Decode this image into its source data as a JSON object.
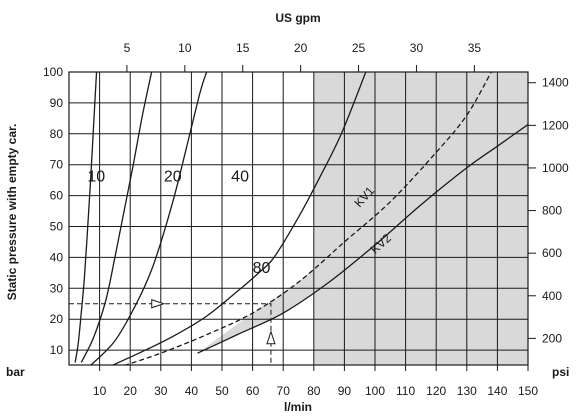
{
  "chart_data": {
    "type": "line",
    "title": "",
    "xlabel": "l/min",
    "ylabel": "Static pressure with empty car.",
    "y_unit": "bar",
    "top_axis_label": "US gpm",
    "right_axis_unit": "psi",
    "x_ticks": [
      10,
      20,
      30,
      40,
      50,
      60,
      70,
      80,
      90,
      100,
      110,
      120,
      130,
      140,
      150
    ],
    "y_ticks": [
      10,
      20,
      30,
      40,
      50,
      60,
      70,
      80,
      90,
      100
    ],
    "top_ticks": [
      5,
      10,
      15,
      20,
      25,
      30,
      35
    ],
    "right_ticks": [
      200,
      400,
      600,
      800,
      1000,
      1200,
      1400
    ],
    "xlim": [
      0,
      150
    ],
    "ylim": [
      5,
      100
    ],
    "grid": true,
    "shaded_region_x": [
      80,
      150
    ],
    "series": [
      {
        "name": "10",
        "style": "solid",
        "points": [
          [
            2,
            6
          ],
          [
            3,
            12
          ],
          [
            4,
            22
          ],
          [
            5,
            33
          ],
          [
            6,
            48
          ],
          [
            7,
            64
          ],
          [
            8,
            82
          ],
          [
            9,
            100
          ]
        ]
      },
      {
        "name": "20",
        "style": "solid",
        "points": [
          [
            4,
            6
          ],
          [
            8,
            14
          ],
          [
            12,
            26
          ],
          [
            15,
            40
          ],
          [
            18,
            55
          ],
          [
            21,
            70
          ],
          [
            24,
            86
          ],
          [
            27,
            100
          ]
        ]
      },
      {
        "name": "40",
        "style": "solid",
        "points": [
          [
            7,
            5
          ],
          [
            15,
            13
          ],
          [
            22,
            25
          ],
          [
            27,
            36
          ],
          [
            31,
            48
          ],
          [
            35,
            62
          ],
          [
            39,
            78
          ],
          [
            43,
            94
          ],
          [
            45,
            100
          ]
        ]
      },
      {
        "name": "80",
        "style": "solid",
        "points": [
          [
            14,
            5
          ],
          [
            25,
            10
          ],
          [
            35,
            15
          ],
          [
            45,
            21
          ],
          [
            55,
            29
          ],
          [
            62,
            35
          ],
          [
            67,
            40
          ],
          [
            75,
            53
          ],
          [
            82,
            66
          ],
          [
            89,
            80
          ],
          [
            97,
            100
          ]
        ]
      },
      {
        "name": "KV1",
        "style": "dashed",
        "points": [
          [
            18,
            5
          ],
          [
            30,
            9
          ],
          [
            45,
            15
          ],
          [
            60,
            22
          ],
          [
            75,
            32
          ],
          [
            90,
            45
          ],
          [
            105,
            58
          ],
          [
            120,
            74
          ],
          [
            130,
            86
          ],
          [
            138,
            100
          ]
        ]
      },
      {
        "name": "KV2",
        "style": "solid",
        "points": [
          [
            42,
            9
          ],
          [
            55,
            15
          ],
          [
            70,
            22
          ],
          [
            85,
            32
          ],
          [
            100,
            44
          ],
          [
            115,
            57
          ],
          [
            130,
            69
          ],
          [
            140,
            76
          ],
          [
            150,
            83
          ]
        ]
      }
    ],
    "annotations": [
      {
        "type": "dashed-arrow",
        "path": [
          [
            0,
            25
          ],
          [
            66,
            25
          ],
          [
            66,
            5
          ]
        ],
        "arrows_at": [
          [
            29,
            25
          ],
          [
            66,
            14
          ]
        ]
      }
    ]
  }
}
